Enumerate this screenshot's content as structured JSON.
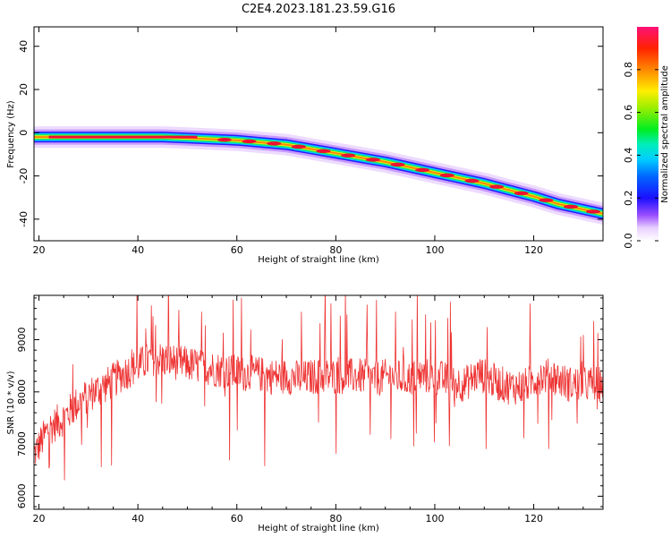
{
  "chart_data": [
    {
      "type": "heatmap",
      "title": "C2E4.2023.181.23.59.G16",
      "xlabel": "Height of straight line (km)",
      "ylabel": "Frequency (Hz)",
      "xlim": [
        19,
        134
      ],
      "ylim": [
        -50,
        49
      ],
      "xticks": [
        20,
        40,
        60,
        80,
        100,
        120
      ],
      "yticks": [
        -40,
        -20,
        0,
        20,
        40
      ],
      "ridge": {
        "x": [
          19,
          25,
          30,
          35,
          40,
          45,
          50,
          55,
          60,
          65,
          70,
          75,
          80,
          85,
          90,
          95,
          100,
          105,
          110,
          115,
          120,
          125,
          130,
          134
        ],
        "y": [
          -2,
          -2,
          -2,
          -2,
          -2,
          -2,
          -2.5,
          -3,
          -3.5,
          -4.5,
          -5.5,
          -7.5,
          -9.5,
          -11.5,
          -13.5,
          -16,
          -18.5,
          -21,
          -23.5,
          -26.5,
          -29.5,
          -33,
          -35.5,
          -37.5
        ]
      },
      "colorbar": {
        "label": "Normalized spectral amplitude",
        "range": [
          0,
          1
        ],
        "ticks": [
          "0.0",
          "0.2",
          "0.4",
          "0.6",
          "0.8"
        ]
      },
      "grid": false
    },
    {
      "type": "line",
      "xlabel": "Height of straight line (km)",
      "ylabel": "SNR (10 * v/v)",
      "xlim": [
        19,
        134
      ],
      "ylim": [
        5750,
        9850
      ],
      "xticks": [
        20,
        40,
        60,
        80,
        100,
        120
      ],
      "yticks": [
        6000,
        7000,
        8000,
        9000
      ],
      "color": "#ee3333",
      "series": [
        {
          "x": [
            19,
            22,
            25,
            28,
            31,
            34,
            37,
            40,
            43,
            46,
            49,
            52,
            55,
            58,
            61,
            64,
            67,
            70,
            73,
            76,
            79,
            82,
            85,
            88,
            91,
            94,
            97,
            100,
            103,
            106,
            109,
            112,
            115,
            118,
            121,
            124,
            127,
            130,
            134
          ],
          "y": [
            6800,
            7300,
            7500,
            7800,
            8000,
            8150,
            8350,
            8500,
            8650,
            8600,
            8550,
            8500,
            8450,
            8400,
            8350,
            8350,
            8300,
            8300,
            8250,
            8300,
            8300,
            8300,
            8300,
            8250,
            8300,
            8250,
            8300,
            8300,
            8200,
            8150,
            8350,
            8200,
            8100,
            8100,
            8300,
            8300,
            8150,
            8150,
            8150
          ]
        }
      ],
      "grid": false
    }
  ]
}
